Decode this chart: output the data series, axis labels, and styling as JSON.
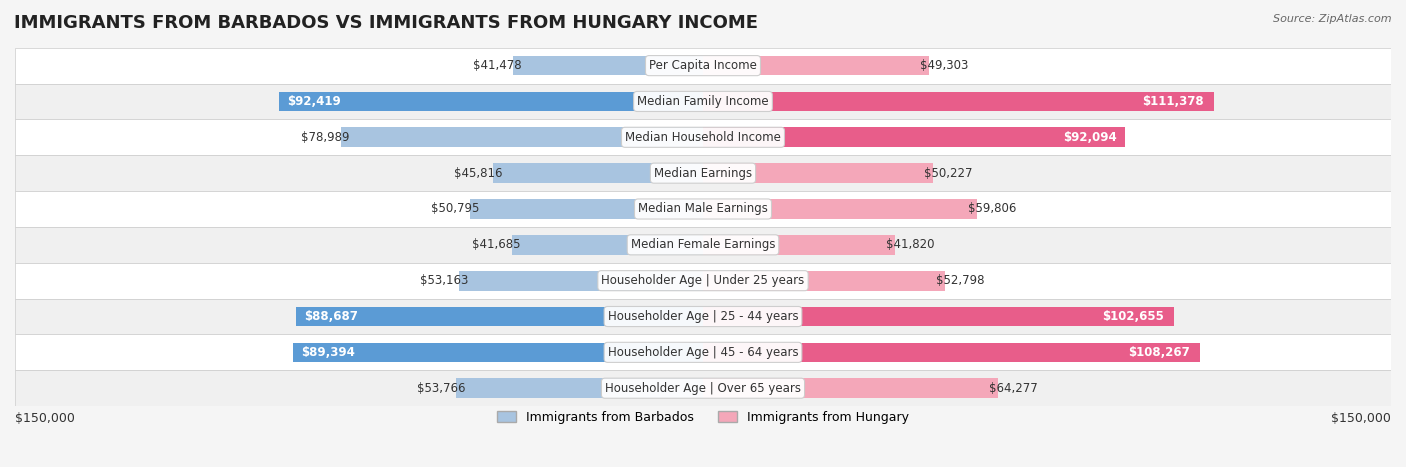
{
  "title": "IMMIGRANTS FROM BARBADOS VS IMMIGRANTS FROM HUNGARY INCOME",
  "source": "Source: ZipAtlas.com",
  "categories": [
    "Per Capita Income",
    "Median Family Income",
    "Median Household Income",
    "Median Earnings",
    "Median Male Earnings",
    "Median Female Earnings",
    "Householder Age | Under 25 years",
    "Householder Age | 25 - 44 years",
    "Householder Age | 45 - 64 years",
    "Householder Age | Over 65 years"
  ],
  "barbados_values": [
    41478,
    92419,
    78989,
    45816,
    50795,
    41685,
    53163,
    88687,
    89394,
    53766
  ],
  "hungary_values": [
    49303,
    111378,
    92094,
    50227,
    59806,
    41820,
    52798,
    102655,
    108267,
    64277
  ],
  "barbados_color_light": "#a8c4e0",
  "barbados_color_dark": "#5b9bd5",
  "hungary_color_light": "#f4a7b9",
  "hungary_color_dark": "#e85d8a",
  "max_value": 150000,
  "xlabel_left": "$150,000",
  "xlabel_right": "$150,000",
  "legend_barbados": "Immigrants from Barbados",
  "legend_hungary": "Immigrants from Hungary",
  "background_color": "#f5f5f5",
  "row_bg_color": "#ffffff",
  "row_alt_color": "#f0f0f0",
  "title_fontsize": 13,
  "label_fontsize": 8.5,
  "value_fontsize": 8.5
}
